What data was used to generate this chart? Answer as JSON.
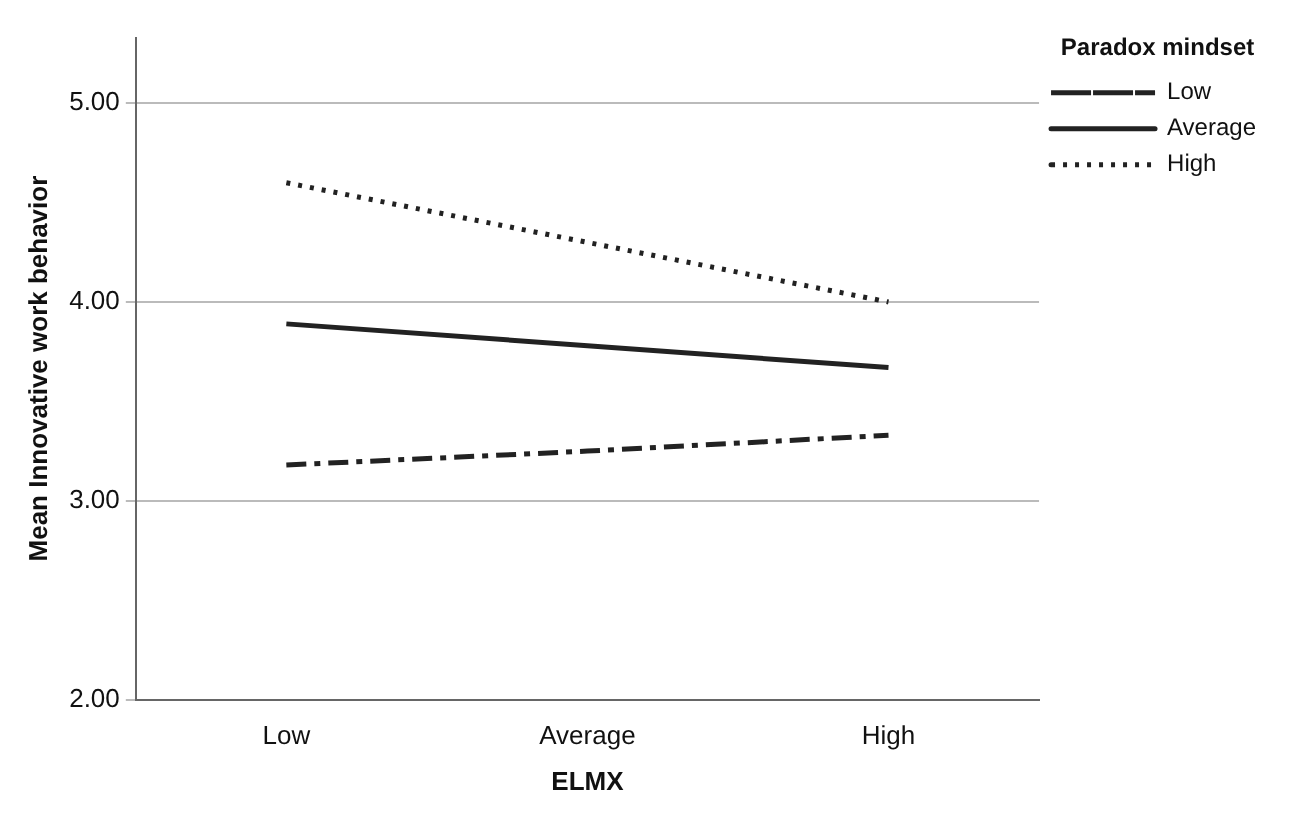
{
  "chart_data": {
    "type": "line",
    "xlabel": "ELMX",
    "ylabel": "Mean Innovative work behavior",
    "legend_title": "Paradox mindset",
    "categories": [
      "Low",
      "Average",
      "High"
    ],
    "series": [
      {
        "name": "Low",
        "color": "#222222",
        "line_style": "dashed",
        "values": [
          3.18,
          3.25,
          3.33
        ]
      },
      {
        "name": "Average",
        "color": "#222222",
        "line_style": "solid",
        "values": [
          3.89,
          3.78,
          3.67
        ]
      },
      {
        "name": "High",
        "color": "#222222",
        "line_style": "dotted",
        "values": [
          4.6,
          4.3,
          4.0
        ]
      }
    ],
    "ylim": [
      2,
      5.33
    ],
    "yticks": [
      {
        "value": 2,
        "label": "2.00"
      },
      {
        "value": 3,
        "label": "3.00"
      },
      {
        "value": 4,
        "label": "4.00"
      },
      {
        "value": 5,
        "label": "5.00"
      }
    ],
    "grid": "y",
    "legend": "top right",
    "marker": "none"
  }
}
